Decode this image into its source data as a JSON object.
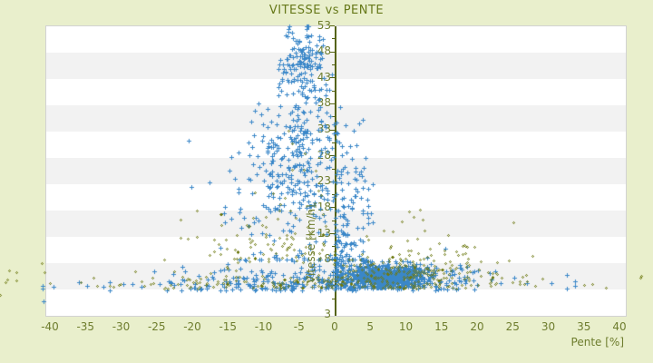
{
  "window": {
    "title": "VITESSE vs PENTE"
  },
  "colors": {
    "page_background": "#e9efcc",
    "band_white": "#ffffff",
    "band_gray": "#f2f2f2",
    "plot_border": "#d2d2d2",
    "axis_line": "#556312",
    "label_text": "#6e7d2e",
    "title_text": "#67791a",
    "series_blue": "#3a87c8",
    "series_olive": "#6e7a12"
  },
  "chart_data": {
    "type": "scatter",
    "title": "VITESSE vs PENTE",
    "xlabel": "Pente [%]",
    "ylabel": "Vitesse [km/h]",
    "xlim": [
      -40,
      40
    ],
    "ylim": [
      -2,
      53
    ],
    "x_ticks": [
      "-40",
      "-35",
      "-30",
      "-25",
      "-20",
      "-15",
      "-10",
      "-5",
      "0",
      "5",
      "10",
      "15",
      "20",
      "25",
      "30",
      "35",
      "40"
    ],
    "y_ticks": [
      "53",
      "48",
      "43",
      "38",
      "33",
      "28",
      "23",
      "18",
      "13",
      "8",
      "3"
    ],
    "y_axis_bottom_label": "3",
    "grid": "horizontal-alternating-bands",
    "legend_position": "none",
    "y_axis_cross_x": 0,
    "seed": 20240607,
    "series": [
      {
        "name": "vitesse-points-blue",
        "marker": "plus",
        "color": "#3a87c8",
        "clusters": [
          {
            "kind": "gauss",
            "n": 760,
            "x": [
              7.0,
              2.9,
              0.3,
              16.5
            ],
            "y": [
              5.4,
              1.15,
              3.1,
              8.3
            ]
          },
          {
            "kind": "plume",
            "n": 400,
            "ydist": [
              26,
              9.5,
              8.5,
              46
            ],
            "mux": [
              -4.0,
              0.055
            ],
            "sigx": [
              1.3,
              0.1
            ],
            "xclamp": [
              -27,
              4
            ]
          },
          {
            "kind": "gauss",
            "n": 120,
            "x": [
              -4.8,
              1.5,
              -9,
              -1
            ],
            "y": [
              47.5,
              3.2,
              41,
              53.4
            ]
          },
          {
            "kind": "low",
            "n": 280,
            "x": [
              -5,
              13.5,
              -41,
              41
            ],
            "y": [
              2.6,
              2.3,
              1.0,
              15
            ]
          },
          {
            "kind": "low",
            "n": 110,
            "x": [
              8,
              6.5,
              -8,
              28
            ],
            "y": [
              3.0,
              2.2,
              3.0,
              13
            ]
          },
          {
            "kind": "gauss",
            "n": 70,
            "x": [
              2.2,
              1.8,
              0.2,
              9
            ],
            "y": [
              17,
              7,
              8.5,
              38
            ]
          },
          {
            "kind": "gauss",
            "n": 60,
            "x": [
              0.8,
              0.7,
              0.15,
              3
            ],
            "y": [
              9,
              4,
              3.2,
              20
            ]
          }
        ],
        "extra_points": [
          [
            -40.9,
            0.6
          ],
          [
            -39.5,
            3.4
          ]
        ]
      },
      {
        "name": "vitesse-points-olive",
        "marker": "diamond",
        "color": "#6e7a12",
        "clusters": [
          {
            "kind": "low",
            "n": 250,
            "x": [
              0,
              17,
              -46,
              43
            ],
            "y": [
              3.0,
              1.9,
              1.6,
              10
            ]
          },
          {
            "kind": "gauss",
            "n": 140,
            "x": [
              11,
              5.5,
              -1,
              27
            ],
            "y": [
              6.6,
              1.7,
              3.4,
              11
            ]
          },
          {
            "kind": "low",
            "n": 95,
            "x": [
              -8,
              5.5,
              -26,
              0
            ],
            "y": [
              8,
              4.6,
              8,
              30
            ]
          },
          {
            "kind": "gauss",
            "n": 45,
            "x": [
              13,
              6,
              1,
              30
            ],
            "y": [
              10.5,
              2.8,
              6,
              20
            ]
          },
          {
            "kind": "gauss",
            "n": 12,
            "x": [
              -6,
              2.5,
              -12,
              -1
            ],
            "y": [
              26,
              6,
              18,
              38
            ]
          }
        ],
        "extra_points": [
          [
            -46.2,
            4.2
          ],
          [
            -44.7,
            4.6
          ],
          [
            -47.0,
            1.8
          ],
          [
            42.9,
            5.1
          ]
        ]
      }
    ]
  }
}
